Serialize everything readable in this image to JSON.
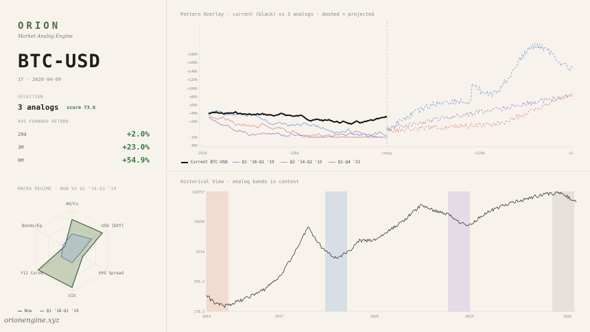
{
  "brand": {
    "name": "ORION",
    "subtitle": "Market Analog Engine"
  },
  "asset": {
    "ticker": "BTC-USD",
    "subline": "1Y · 2026-04-09"
  },
  "selection": {
    "label": "SELECTION",
    "analogs": "3 analogs",
    "score": "score 73.6"
  },
  "returns": {
    "label": "AVG FORWARD RETURN",
    "rows": [
      {
        "horizon": "20d",
        "value": "+2.0%"
      },
      {
        "horizon": "3M",
        "value": "+23.0%"
      },
      {
        "horizon": "6M",
        "value": "+54.9%"
      }
    ]
  },
  "macro": {
    "label": "MACRO REGIME · NOW VS Q1 '18-Q1 '19",
    "axes": [
      "AU/Cu",
      "USD [DXY]",
      "HYG Spread",
      "VIX",
      "Y12 Curve",
      "Bonds/Eq"
    ],
    "now": [
      0.75,
      0.85,
      0.3,
      0.9,
      0.95,
      0.2
    ],
    "analog": [
      0.4,
      0.55,
      0.2,
      0.3,
      0.3,
      0.25
    ],
    "legend": [
      "Now",
      "Q1 '18-Q1 '19"
    ],
    "colors": {
      "now": "#3f5f3f",
      "analog": "#5a7fb0"
    }
  },
  "footer": "orionengine.xyz",
  "overlay": {
    "title": "Pattern Overlay · current (black) vs 3 analogs · dashed = projected",
    "ylabels": [
      "+190%",
      "+160%",
      "+140%",
      "+120%",
      "+100%",
      "+80%",
      "+60%",
      "+40%",
      "+20%",
      "-10%",
      "-30%"
    ],
    "xlabels": [
      "-252d",
      "-126d",
      "today",
      "+126d",
      "+3"
    ],
    "legend": [
      "Current BTC-USD",
      "Q1 '18-Q1 '19",
      "Q2 '14-Q2 '15",
      "Q1-Q4 '22"
    ],
    "colors": {
      "current": "#111111",
      "a1": "#7fa3d6",
      "a2": "#e09090",
      "a3": "#a58bc8"
    }
  },
  "history": {
    "title": "Historical View · analog bands in context",
    "ylabels": [
      "134757",
      "24258",
      "9714",
      "916.2",
      "178.3"
    ],
    "xlabels": [
      "2014",
      "2017",
      "2020",
      "2023",
      "2026"
    ],
    "band_colors": [
      "#f0d4c8",
      "#d4dce4",
      "#e0d8e6",
      "#e2ded8"
    ]
  }
}
